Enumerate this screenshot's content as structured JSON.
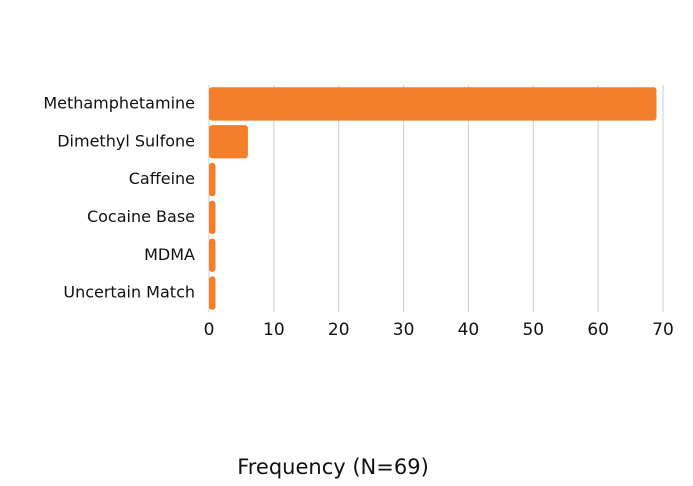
{
  "chart_data": {
    "type": "barh",
    "x_label": "Frequency (N=69)",
    "categories": [
      "Methamphetamine",
      "Dimethyl Sulfone",
      "Caffeine",
      "Cocaine Base",
      "MDMA",
      "Uncertain Match"
    ],
    "values": [
      69,
      6,
      1,
      1,
      1,
      1
    ],
    "color": "#f47f2a",
    "xlim": [
      0,
      70
    ],
    "xticks": [
      0,
      10,
      20,
      30,
      40,
      50,
      60,
      70
    ],
    "grid": true
  }
}
